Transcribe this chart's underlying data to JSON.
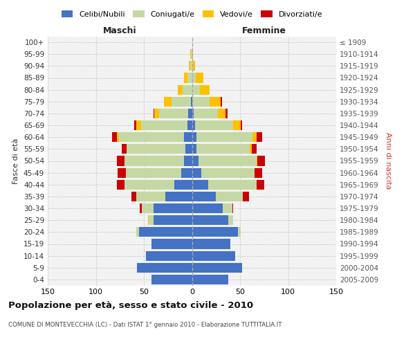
{
  "age_groups": [
    "0-4",
    "5-9",
    "10-14",
    "15-19",
    "20-24",
    "25-29",
    "30-34",
    "35-39",
    "40-44",
    "45-49",
    "50-54",
    "55-59",
    "60-64",
    "65-69",
    "70-74",
    "75-79",
    "80-84",
    "85-89",
    "90-94",
    "95-99",
    "100+"
  ],
  "birth_years": [
    "2005-2009",
    "2000-2004",
    "1995-1999",
    "1990-1994",
    "1985-1989",
    "1980-1984",
    "1975-1979",
    "1970-1974",
    "1965-1969",
    "1960-1964",
    "1955-1959",
    "1950-1954",
    "1945-1949",
    "1940-1944",
    "1935-1939",
    "1930-1934",
    "1925-1929",
    "1920-1924",
    "1915-1919",
    "1910-1914",
    "≤ 1909"
  ],
  "males": {
    "celibi": [
      42,
      57,
      48,
      42,
      55,
      40,
      40,
      28,
      18,
      11,
      8,
      7,
      8,
      5,
      4,
      1,
      0,
      0,
      0,
      0,
      0
    ],
    "coniugati": [
      0,
      0,
      0,
      0,
      3,
      5,
      12,
      30,
      52,
      58,
      62,
      61,
      68,
      48,
      30,
      20,
      10,
      5,
      2,
      1,
      0
    ],
    "vedovi": [
      0,
      0,
      0,
      0,
      0,
      1,
      0,
      0,
      0,
      0,
      0,
      0,
      2,
      5,
      5,
      8,
      5,
      3,
      1,
      1,
      0
    ],
    "divorziati": [
      0,
      0,
      0,
      0,
      0,
      0,
      2,
      5,
      8,
      8,
      8,
      5,
      5,
      2,
      1,
      0,
      0,
      0,
      0,
      0,
      0
    ]
  },
  "females": {
    "nubili": [
      38,
      52,
      45,
      40,
      48,
      38,
      32,
      25,
      17,
      10,
      7,
      5,
      5,
      3,
      2,
      0,
      0,
      0,
      0,
      0,
      0
    ],
    "coniugate": [
      0,
      0,
      0,
      0,
      3,
      5,
      10,
      28,
      50,
      55,
      60,
      55,
      58,
      40,
      25,
      18,
      8,
      4,
      1,
      0,
      0
    ],
    "vedove": [
      0,
      0,
      0,
      0,
      0,
      0,
      0,
      0,
      0,
      0,
      1,
      2,
      4,
      8,
      8,
      12,
      10,
      8,
      2,
      1,
      0
    ],
    "divorziate": [
      0,
      0,
      0,
      0,
      0,
      0,
      1,
      6,
      8,
      8,
      8,
      5,
      6,
      1,
      2,
      1,
      0,
      0,
      0,
      0,
      0
    ]
  },
  "colors": {
    "celibi": "#4472c4",
    "coniugati": "#c5d8a4",
    "vedovi": "#ffc000",
    "divorziati": "#cc0000"
  },
  "title": "Popolazione per età, sesso e stato civile - 2010",
  "subtitle": "COMUNE DI MONTEVECCHIA (LC) - Dati ISTAT 1° gennaio 2010 - Elaborazione TUTTITALIA.IT",
  "label_maschi": "Maschi",
  "label_femmine": "Femmine",
  "ylabel_left": "Fasce di età",
  "ylabel_right": "Anni di nascita",
  "xlim": 150,
  "legend_labels": [
    "Celibi/Nubili",
    "Coniugati/e",
    "Vedovi/e",
    "Divorziati/e"
  ],
  "bg_color": "#f2f2f2",
  "grid_color": "#cccccc"
}
